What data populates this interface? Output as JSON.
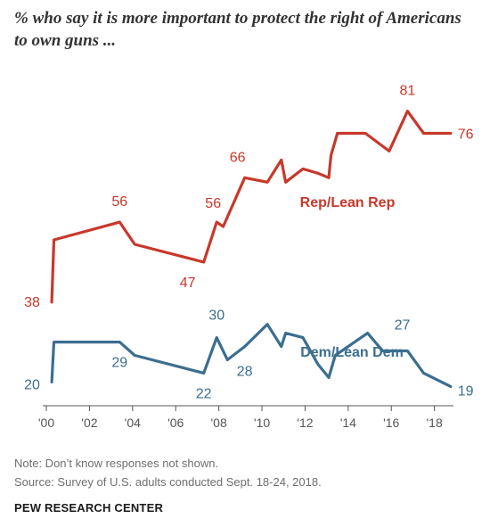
{
  "title": "% who say it is more important to protect the right of Americans to own guns ...",
  "note": "Note: Don’t know responses not shown.",
  "source": "Source: Survey of U.S. adults conducted Sept. 18-24, 2018.",
  "brand": "PEW RESEARCH CENTER",
  "chart_data": {
    "type": "line",
    "x_ticks": [
      2000,
      2002,
      2004,
      2006,
      2008,
      2010,
      2012,
      2014,
      2016,
      2018
    ],
    "x_tick_labels": [
      "'00",
      "'02",
      "'04",
      "'06",
      "'08",
      "'10",
      "'12",
      "'14",
      "'16",
      "'18"
    ],
    "xlim": [
      2000,
      2018.8
    ],
    "ylim": [
      0,
      100
    ],
    "series": [
      {
        "name": "Rep/Lean Rep",
        "color": "#c8382b",
        "x": [
          2000.25,
          2000.35,
          2003.4,
          2004.1,
          2007.3,
          2007.9,
          2008.2,
          2009.2,
          2010.25,
          2010.9,
          2011.1,
          2011.9,
          2012.6,
          2013.1,
          2013.2,
          2013.5,
          2014.8,
          2015.9,
          2016.75,
          2017.5,
          2018.75
        ],
        "values": [
          38,
          52,
          56,
          51,
          47,
          56,
          55,
          66,
          65,
          70,
          65,
          68,
          67,
          66,
          71,
          76,
          76,
          72,
          81,
          76,
          76
        ],
        "labels": [
          {
            "index": 0,
            "text": "38"
          },
          {
            "index": 2,
            "text": "56"
          },
          {
            "index": 4,
            "text": "47"
          },
          {
            "index": 5,
            "text": "56"
          },
          {
            "index": 7,
            "text": "66"
          },
          {
            "index": 18,
            "text": "81"
          },
          {
            "index": 20,
            "text": "76"
          }
        ]
      },
      {
        "name": "Dem/Lean Dem",
        "color": "#3c6e8f",
        "x": [
          2000.25,
          2000.35,
          2003.4,
          2004.1,
          2007.3,
          2007.9,
          2008.4,
          2009.2,
          2010.25,
          2010.9,
          2011.1,
          2011.9,
          2012.6,
          2013.1,
          2013.4,
          2014.9,
          2015.6,
          2016.75,
          2017.5,
          2018.75
        ],
        "values": [
          20,
          29,
          29,
          26,
          22,
          30,
          25,
          28,
          33,
          28,
          31,
          30,
          24,
          21,
          26,
          31,
          27,
          27,
          22,
          19
        ],
        "labels": [
          {
            "index": 0,
            "text": "20"
          },
          {
            "index": 2,
            "text": "29"
          },
          {
            "index": 4,
            "text": "22"
          },
          {
            "index": 5,
            "text": "30"
          },
          {
            "index": 7,
            "text": "28"
          },
          {
            "index": 16,
            "text": "27"
          },
          {
            "index": 19,
            "text": "19"
          }
        ]
      }
    ]
  }
}
